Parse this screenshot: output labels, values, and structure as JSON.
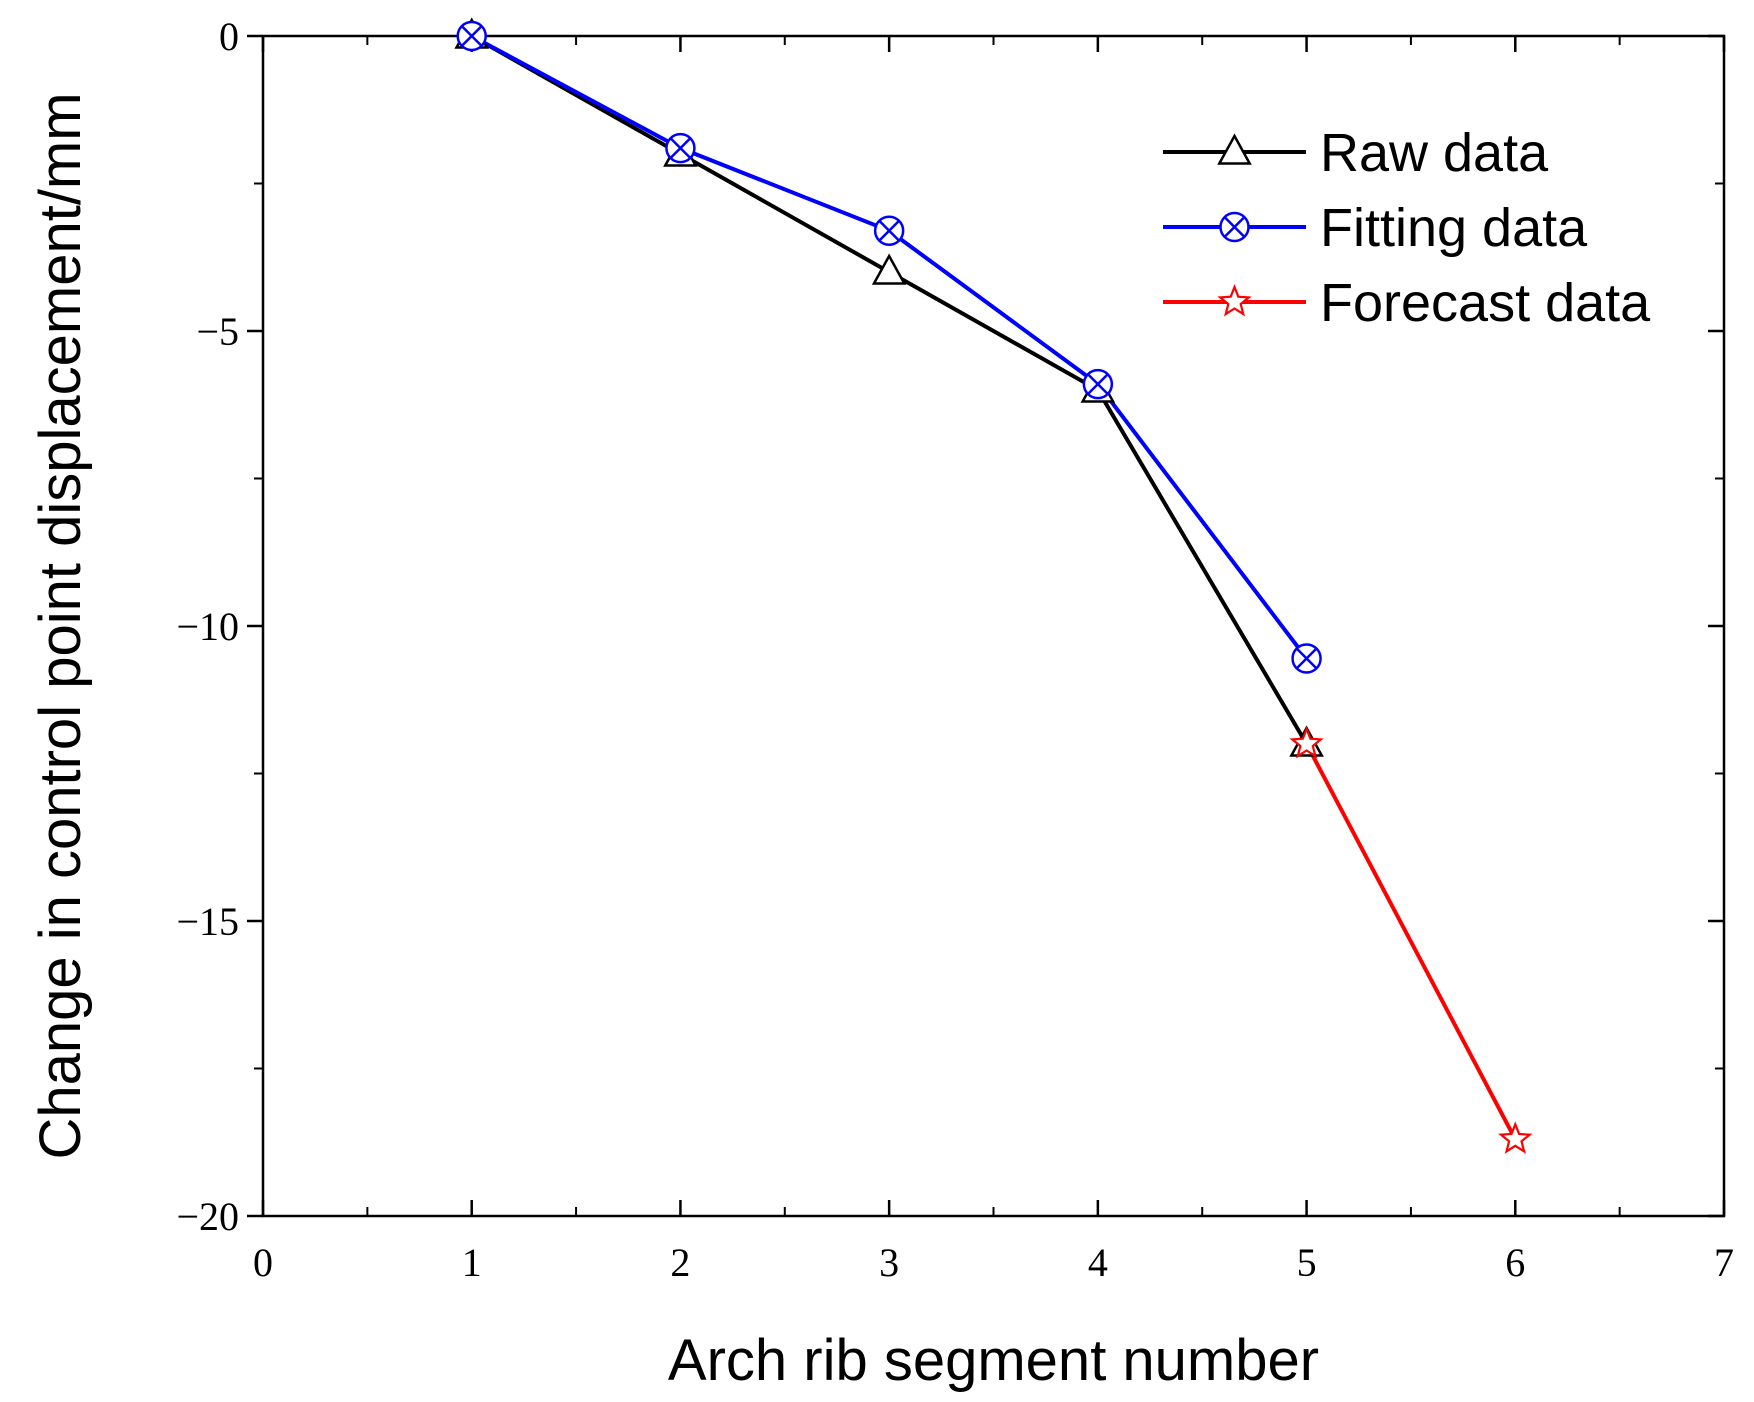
{
  "chart_data": {
    "type": "line",
    "title": "",
    "xlabel": "Arch rib segment number",
    "ylabel": "Change in control point displacement/mm",
    "xlim": [
      0,
      7
    ],
    "ylim": [
      -20,
      0
    ],
    "x_ticks": [
      "0",
      "1",
      "2",
      "3",
      "4",
      "5",
      "6",
      "7"
    ],
    "y_ticks": [
      "0",
      "−5",
      "−10",
      "−15",
      "−20"
    ],
    "grid": false,
    "legend_position": "top-right",
    "series": [
      {
        "name": "Raw data",
        "color": "#000000",
        "marker": "triangle",
        "x": [
          1,
          2,
          3,
          4,
          5
        ],
        "y": [
          0,
          -2.0,
          -4.0,
          -6.0,
          -12.0
        ]
      },
      {
        "name": "Fitting data",
        "color": "#0000ff",
        "marker": "circle-x",
        "x": [
          1,
          2,
          3,
          4,
          5
        ],
        "y": [
          0,
          -1.9,
          -3.3,
          -5.9,
          -10.55
        ]
      },
      {
        "name": "Forecast data",
        "color": "#ff0000",
        "marker": "star",
        "x": [
          5,
          6
        ],
        "y": [
          -12.0,
          -18.7
        ]
      }
    ]
  }
}
